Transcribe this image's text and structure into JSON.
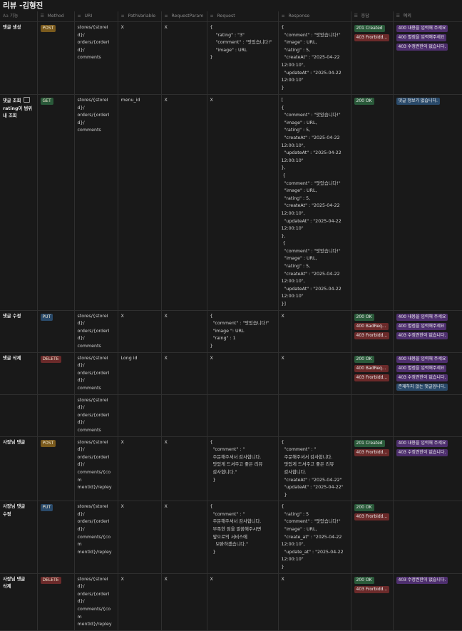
{
  "page": {
    "title": "리뷰 -김형진"
  },
  "columns": [
    {
      "label": "기능",
      "icon": "Aa"
    },
    {
      "label": "Method",
      "icon": "☰"
    },
    {
      "label": "URI",
      "icon": "≡"
    },
    {
      "label": "PathVariable",
      "icon": "≡"
    },
    {
      "label": "RequestParam",
      "icon": "≡"
    },
    {
      "label": "Request",
      "icon": "≡"
    },
    {
      "label": "Response",
      "icon": "≡"
    },
    {
      "label": "응답",
      "icon": "☰"
    },
    {
      "label": "예외",
      "icon": "☰"
    }
  ],
  "colors": {
    "POST": "#7a5a1d",
    "GET": "#2a5a3a",
    "PUT": "#2a4a6a",
    "DELETE": "#6b2a2a",
    "ok": "#2a5a3a",
    "err": "#6b2a2a",
    "exc_purple": "#4e2f6e",
    "exc_blue": "#2a4a6a"
  },
  "rows": [
    {
      "feature": "댓글 생성",
      "open_icon": false,
      "feature_rest": "",
      "method": "POST",
      "uri": "stores/{storeId}/\norders/{orderId}/\ncomments",
      "path": "X",
      "param": "X",
      "request": "{\n    \"rating\" : \"3\"\n    \"comment\" : \"맛있습니다!\"\n    \"image\" : URL\n}",
      "response": "{\n  \"comment\" : \"맛있습니다!\"\n  \"image\" : URL,\n  \"rating\" : 5,\n  \"createAt\" : \"2025-04-22\n12:00:10\",\n  \"updateAt\" : \"2025-04-22\n12:00:10\"\n}",
      "status": [
        {
          "text": "201 Created",
          "kind": "ok"
        },
        {
          "text": "403 Frorbidd...",
          "kind": "err"
        }
      ],
      "exceptions": [
        {
          "text": "400 내용을 입력해 주세요",
          "kind": "purple"
        },
        {
          "text": "400 별점을 입력해주세요",
          "kind": "purple"
        },
        {
          "text": "403 수정권한이 없습니다.",
          "kind": "purple"
        }
      ],
      "h": 102
    },
    {
      "feature": "댓글 조회 ",
      "open_icon": true,
      "feature_rest": "\nrating이 범위\n내 조회",
      "method": "GET",
      "uri": "stores/{storeId}/\norders/{orderId}/\ncomments",
      "path": "menu_id",
      "param": "X",
      "request": "X",
      "response": "[\n{\n  \"comment\" : \"맛있습니다!\"\n  \"image\" : URL,\n  \"rating\" : 5,\n  \"createAt\" : \"2025-04-22\n12:00:10\",\n  \"updateAt\" : \"2025-04-22\n12:00:10\"\n},\n {\n  \"comment\" : \"맛있습니다!\"\n  \"image\" : URL,\n  \"rating\" : 5,\n  \"createAt\" : \"2025-04-22\n12:00:10\",\n  \"updateAt\" : \"2025-04-22\n12:00:10\"\n},\n {\n  \"comment\" : \"맛있습니다!\"\n  \"image\" : URL,\n  \"rating\" : 5,\n  \"createAt\" : \"2025-04-22\n12:00:10\",\n  \"updateAt\" : \"2025-04-22\n12:00:10\"\n}]",
      "status": [
        {
          "text": "200 OK",
          "kind": "ok"
        }
      ],
      "exceptions": [
        {
          "text": "댓글 정보가 없습니다.",
          "kind": "blue"
        }
      ],
      "h": 302
    },
    {
      "feature": "댓글 수정",
      "open_icon": false,
      "feature_rest": "",
      "method": "PUT",
      "uri": "stores/{storeId}/\norders/{orderId}/\ncomments",
      "path": "X",
      "param": "X",
      "request": "{\n  \"comment\" : \"맛있습니다!\"\n  \"image \": URL\n  \"raing\" : 1\n}",
      "response": "X",
      "status": [
        {
          "text": "200 OK",
          "kind": "ok"
        },
        {
          "text": "400 BadReq...",
          "kind": "err"
        },
        {
          "text": "403 Frorbidd...",
          "kind": "err"
        }
      ],
      "exceptions": [
        {
          "text": "400 내용을 입력해 주세요",
          "kind": "purple"
        },
        {
          "text": "400 별점을 입력해주세요",
          "kind": "purple"
        },
        {
          "text": "403 수정권한이 없습니다.",
          "kind": "purple"
        }
      ],
      "h": 57
    },
    {
      "feature": "댓글 삭제",
      "open_icon": false,
      "feature_rest": "",
      "method": "DELETE",
      "uri": "stores/{storeId}/\norders/{orderId}/\ncomments",
      "path": "Long id",
      "param": "X",
      "request": "X",
      "response": "X",
      "status": [
        {
          "text": "200 OK",
          "kind": "ok"
        },
        {
          "text": "400 BadReq...",
          "kind": "err"
        },
        {
          "text": "403 Frorbidd...",
          "kind": "err"
        }
      ],
      "exceptions": [
        {
          "text": "400 내용을 입력해 주세요",
          "kind": "purple"
        },
        {
          "text": "400 별점을 입력해주세요",
          "kind": "purple"
        },
        {
          "text": "403 수정권한이 없습니다.",
          "kind": "purple"
        },
        {
          "text": "존재하지 않는 댓글입니다.",
          "kind": "blue"
        }
      ],
      "h": 57
    },
    {
      "feature": "",
      "open_icon": false,
      "feature_rest": "",
      "method": "",
      "uri": "stores/{storeId}/\norders/{orderId}/\ncomments",
      "path": "",
      "param": "",
      "request": "",
      "response": "",
      "status": [],
      "exceptions": [],
      "h": 40
    },
    {
      "feature": "사장님 댓글",
      "open_icon": false,
      "feature_rest": "",
      "method": "POST",
      "uri": "stores/{storeId}/\norders/{orderId}/\ncomments/{com\nmentId}/repley",
      "path": "X",
      "param": "X",
      "request": "{\n  \"comment\" : \"\n  주문해주셔서 감사합니다.\n  맛있게 드셔주고 좋은 리뷰\n  감사합니다.\"\n  }",
      "response": "{\n  \"comment\" : \"\n  주문해주셔서 감사합니다.\n  맛있게 드셔주고 좋은 리뷰\n  감사합니다.\n  \"createAt\" : \"2025-04-22\"\n  \"updateAt\" : \"2025-04-22\"\n  }",
      "status": [
        {
          "text": "201 Created",
          "kind": "ok"
        },
        {
          "text": "403 Frorbidd...",
          "kind": "err"
        }
      ],
      "exceptions": [
        {
          "text": "400 내용을 입력해 주세요",
          "kind": "purple"
        },
        {
          "text": "403 수정권한이 없습니다.",
          "kind": "purple"
        }
      ],
      "h": 90
    },
    {
      "feature": "사장님 댓글\n수정",
      "open_icon": false,
      "feature_rest": "",
      "method": "PUT",
      "uri": "stores/{storeId}/\norders/{orderId}/\ncomments/{com\nmentId}/repley",
      "path": "X",
      "param": "X",
      "request": "{\n  \"comment\" : \"\n  주문해주셔서 감사합니다.\n  부족한 점을 말씀해주시면\n  앞으로의 서비스에\n    보완하겠습니다.\"\n  }",
      "response": "{\n  \"rating\" : 5\n  \"comment\" : \"맛있습니다!\"\n  \"image\" : URL,\n  \"create_at\" : \"2025-04-22\n12:00:10\",\n  \"update_at\" : \"2025-04-22\n12:00:10\"\n}",
      "status": [
        {
          "text": "200 OK",
          "kind": "ok"
        },
        {
          "text": "403 Frorbidd...",
          "kind": "err"
        }
      ],
      "exceptions": [],
      "h": 99
    },
    {
      "feature": "사장님 댓글\n삭제",
      "open_icon": false,
      "feature_rest": "",
      "method": "DELETE",
      "uri": "stores/{storeId}/\norders/{orderId}/\ncomments/{com\nmentId}/repley",
      "path": "X",
      "param": "X",
      "request": "X",
      "response": "X",
      "status": [
        {
          "text": "200 OK",
          "kind": "ok"
        },
        {
          "text": "403 Frorbidd...",
          "kind": "err"
        }
      ],
      "exceptions": [
        {
          "text": "403 수정권한이 없습니다.",
          "kind": "purple"
        }
      ],
      "h": 52
    }
  ]
}
